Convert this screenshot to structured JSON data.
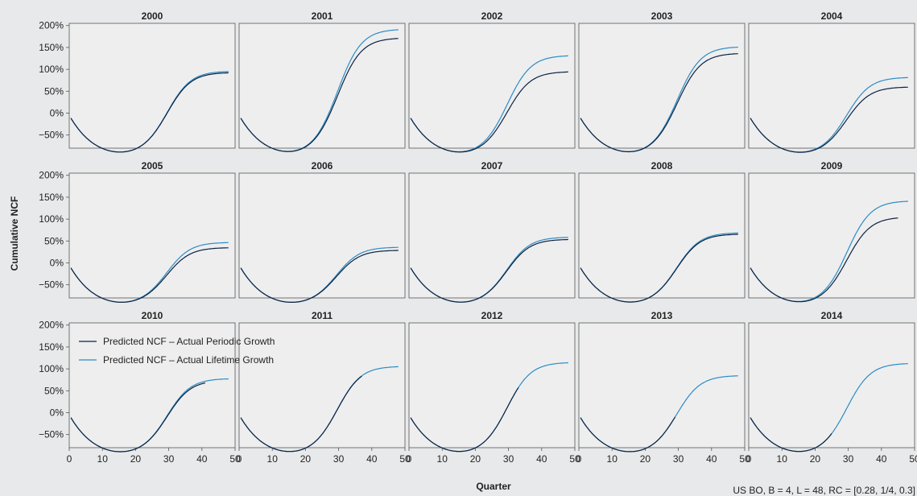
{
  "colors": {
    "periodic": "#0d2240",
    "lifetime": "#2b8cc4",
    "background": "#e8e9ea",
    "panel": "#eeeeef"
  },
  "chart_data": {
    "type": "line",
    "layout": "small-multiples grid, 3 rows x 5 columns",
    "ylabel": "Cumulative NCF",
    "xlabel": "Quarter",
    "note": "US BO, B = 4, L = 48, RC = [0.28, 1/4, 0.3]",
    "xlim": [
      0,
      50
    ],
    "ylim": [
      -80,
      205
    ],
    "xticks": [
      "0",
      "10",
      "20",
      "30",
      "40",
      "50"
    ],
    "yticks": [
      "200%",
      "150%",
      "100%",
      "50%",
      "0%",
      "−50%"
    ],
    "ytick_values": [
      200,
      150,
      100,
      50,
      0,
      -50
    ],
    "xtick_values": [
      0,
      10,
      20,
      30,
      40,
      50
    ],
    "legend": {
      "placement": "top-left of panel 2010",
      "entries": [
        "Predicted NCF – Actual Periodic Growth",
        "Predicted NCF – Actual Lifetime Growth"
      ]
    },
    "panels": [
      {
        "title": "2000",
        "series": [
          {
            "name": "Predicted NCF – Actual Periodic Growth",
            "end_x": 48,
            "plateau": 93
          },
          {
            "name": "Predicted NCF – Actual Lifetime Growth",
            "end_x": 48,
            "plateau": 96
          }
        ]
      },
      {
        "title": "2001",
        "series": [
          {
            "name": "Predicted NCF – Actual Periodic Growth",
            "end_x": 48,
            "plateau": 172
          },
          {
            "name": "Predicted NCF – Actual Lifetime Growth",
            "end_x": 48,
            "plateau": 192
          }
        ]
      },
      {
        "title": "2002",
        "series": [
          {
            "name": "Predicted NCF – Actual Periodic Growth",
            "end_x": 48,
            "plateau": 95
          },
          {
            "name": "Predicted NCF – Actual Lifetime Growth",
            "end_x": 48,
            "plateau": 132
          }
        ]
      },
      {
        "title": "2003",
        "series": [
          {
            "name": "Predicted NCF – Actual Periodic Growth",
            "end_x": 48,
            "plateau": 137
          },
          {
            "name": "Predicted NCF – Actual Lifetime Growth",
            "end_x": 48,
            "plateau": 152
          }
        ]
      },
      {
        "title": "2004",
        "series": [
          {
            "name": "Predicted NCF – Actual Periodic Growth",
            "end_x": 48,
            "plateau": 60
          },
          {
            "name": "Predicted NCF – Actual Lifetime Growth",
            "end_x": 48,
            "plateau": 82
          }
        ]
      },
      {
        "title": "2005",
        "series": [
          {
            "name": "Predicted NCF – Actual Periodic Growth",
            "end_x": 48,
            "plateau": 35
          },
          {
            "name": "Predicted NCF – Actual Lifetime Growth",
            "end_x": 48,
            "plateau": 47
          }
        ]
      },
      {
        "title": "2006",
        "series": [
          {
            "name": "Predicted NCF – Actual Periodic Growth",
            "end_x": 48,
            "plateau": 29
          },
          {
            "name": "Predicted NCF – Actual Lifetime Growth",
            "end_x": 48,
            "plateau": 36
          }
        ]
      },
      {
        "title": "2007",
        "series": [
          {
            "name": "Predicted NCF – Actual Periodic Growth",
            "end_x": 48,
            "plateau": 54
          },
          {
            "name": "Predicted NCF – Actual Lifetime Growth",
            "end_x": 48,
            "plateau": 59
          }
        ]
      },
      {
        "title": "2008",
        "series": [
          {
            "name": "Predicted NCF – Actual Periodic Growth",
            "end_x": 48,
            "plateau": 66
          },
          {
            "name": "Predicted NCF – Actual Lifetime Growth",
            "end_x": 48,
            "plateau": 69
          }
        ]
      },
      {
        "title": "2009",
        "series": [
          {
            "name": "Predicted NCF – Actual Periodic Growth",
            "end_x": 45,
            "plateau": 105
          },
          {
            "name": "Predicted NCF – Actual Lifetime Growth",
            "end_x": 48,
            "plateau": 142
          }
        ]
      },
      {
        "title": "2010",
        "series": [
          {
            "name": "Predicted NCF – Actual Periodic Growth",
            "end_x": 41,
            "plateau": 74
          },
          {
            "name": "Predicted NCF – Actual Lifetime Growth",
            "end_x": 48,
            "plateau": 78
          }
        ]
      },
      {
        "title": "2011",
        "series": [
          {
            "name": "Predicted NCF – Actual Periodic Growth",
            "end_x": 37,
            "plateau": 105
          },
          {
            "name": "Predicted NCF – Actual Lifetime Growth",
            "end_x": 48,
            "plateau": 106
          }
        ]
      },
      {
        "title": "2012",
        "series": [
          {
            "name": "Predicted NCF – Actual Periodic Growth",
            "end_x": 33,
            "plateau": 115
          },
          {
            "name": "Predicted NCF – Actual Lifetime Growth",
            "end_x": 48,
            "plateau": 115
          }
        ]
      },
      {
        "title": "2013",
        "series": [
          {
            "name": "Predicted NCF – Actual Periodic Growth",
            "end_x": 29,
            "plateau": 85
          },
          {
            "name": "Predicted NCF – Actual Lifetime Growth",
            "end_x": 48,
            "plateau": 85
          }
        ]
      },
      {
        "title": "2014",
        "series": [
          {
            "name": "Predicted NCF – Actual Periodic Growth",
            "end_x": 25,
            "plateau": 113
          },
          {
            "name": "Predicted NCF – Actual Lifetime Growth",
            "end_x": 48,
            "plateau": 113
          }
        ]
      }
    ]
  }
}
